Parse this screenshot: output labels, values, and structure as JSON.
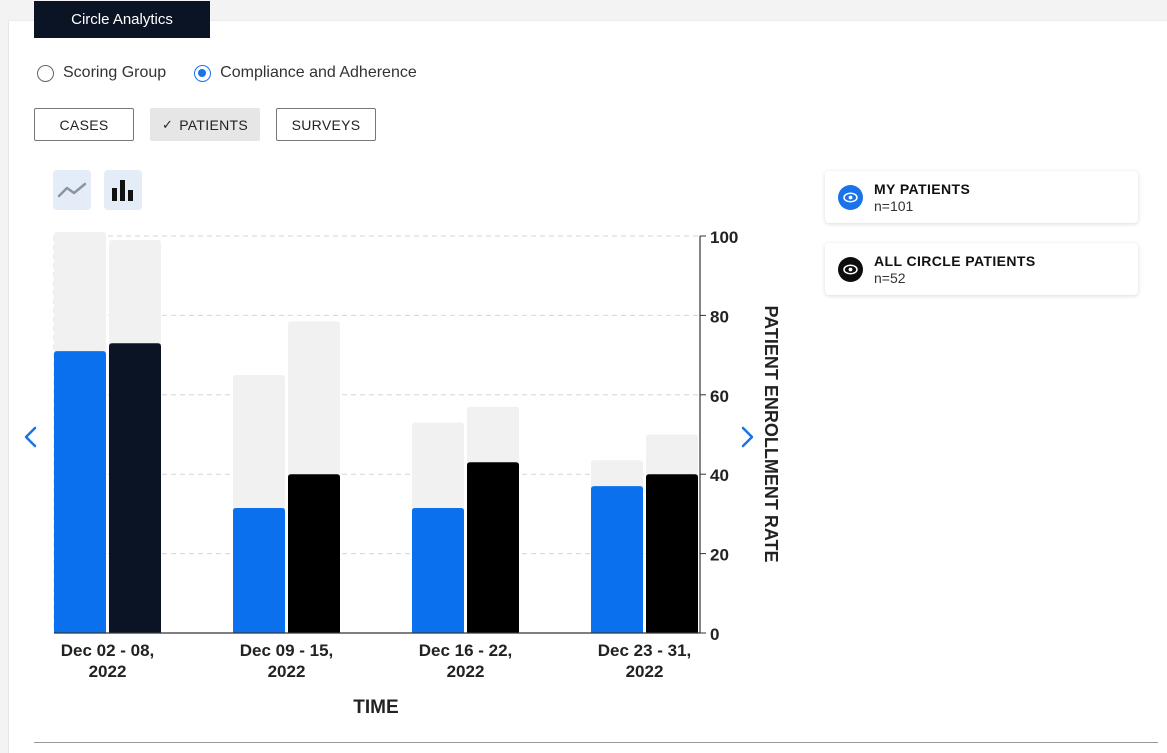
{
  "header": {
    "tab_title": "Circle Analytics"
  },
  "view_toggle": {
    "options": [
      {
        "label": "Scoring Group",
        "selected": false
      },
      {
        "label": "Compliance and Adherence",
        "selected": true
      }
    ]
  },
  "filters": {
    "buttons": [
      {
        "label": "CASES",
        "active": false
      },
      {
        "label": "PATIENTS",
        "active": true,
        "check": "✓"
      },
      {
        "label": "SURVEYS",
        "active": false
      }
    ]
  },
  "chart_mode": {
    "line_icon": "line-chart-icon",
    "bar_icon": "bar-chart-icon",
    "selected": "bar"
  },
  "legend": [
    {
      "name": "MY PATIENTS",
      "count": "n=101",
      "color": "#1a73e8",
      "icon": "eye-icon"
    },
    {
      "name": "ALL CIRCLE PATIENTS",
      "count": "n=52",
      "color": "#0d0d0d",
      "icon": "eye-icon"
    }
  ],
  "chart_data": {
    "type": "bar",
    "xlabel": "TIME",
    "ylabel": "PATIENT ENROLLMENT RATE",
    "ylim": [
      0,
      100
    ],
    "yticks": [
      0,
      20,
      40,
      60,
      80,
      100
    ],
    "y_axis_side": "right",
    "grid": true,
    "categories": [
      [
        "Dec 02 - 08,",
        "2022"
      ],
      [
        "Dec 09 - 15,",
        "2022"
      ],
      [
        "Dec 16 - 22,",
        "2022"
      ],
      [
        "Dec 23 - 31,",
        "2022"
      ]
    ],
    "series": [
      {
        "name": "MY PATIENTS",
        "color": "#0a70ee",
        "values": [
          71,
          31.5,
          31.5,
          37
        ],
        "background_values": [
          101,
          65,
          53,
          43.5
        ]
      },
      {
        "name": "ALL CIRCLE PATIENTS",
        "color": "#000000",
        "first_bar_color": "#0b1424",
        "values": [
          73,
          40,
          43,
          40
        ],
        "background_values": [
          99,
          78.5,
          57,
          50
        ]
      }
    ],
    "background_color": "#f1f1f1"
  }
}
